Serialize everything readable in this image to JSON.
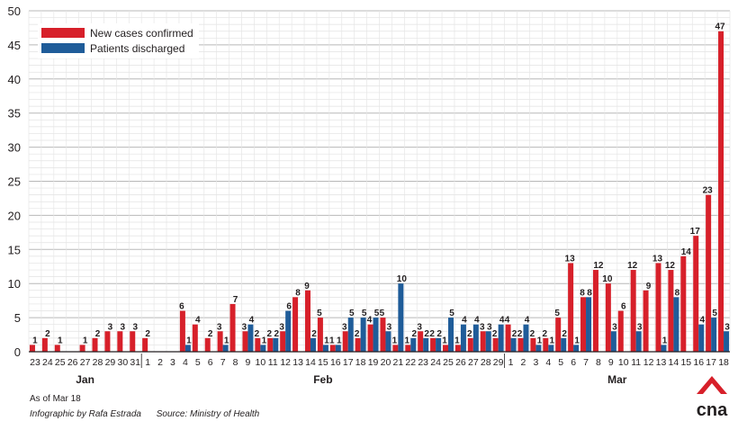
{
  "chart_data": {
    "type": "bar",
    "title": "",
    "xlabel": "",
    "ylabel": "",
    "ylim": [
      0,
      50
    ],
    "yticks": [
      0,
      5,
      10,
      15,
      20,
      25,
      30,
      35,
      40,
      45,
      50
    ],
    "grid": true,
    "legend_position": "top-left",
    "categories": [
      "23",
      "24",
      "25",
      "26",
      "27",
      "28",
      "29",
      "30",
      "31",
      "1",
      "2",
      "3",
      "4",
      "5",
      "6",
      "7",
      "8",
      "9",
      "10",
      "11",
      "12",
      "13",
      "14",
      "15",
      "16",
      "17",
      "18",
      "19",
      "20",
      "21",
      "22",
      "23",
      "24",
      "25",
      "26",
      "27",
      "28",
      "29",
      "1",
      "2",
      "3",
      "4",
      "5",
      "6",
      "7",
      "8",
      "9",
      "10",
      "11",
      "12",
      "13",
      "14",
      "15",
      "16",
      "17",
      "18"
    ],
    "month_labels": [
      {
        "label": "Jan",
        "start_index": 0,
        "end_index": 8
      },
      {
        "label": "Feb",
        "start_index": 9,
        "end_index": 37
      },
      {
        "label": "Mar",
        "start_index": 38,
        "end_index": 55
      }
    ],
    "series": [
      {
        "name": "New cases confirmed",
        "color": "#d7202a",
        "values": [
          1,
          2,
          1,
          0,
          1,
          2,
          3,
          3,
          3,
          2,
          0,
          0,
          6,
          4,
          2,
          3,
          7,
          3,
          2,
          2,
          3,
          8,
          9,
          5,
          1,
          3,
          2,
          4,
          5,
          1,
          1,
          3,
          2,
          1,
          1,
          2,
          3,
          2,
          4,
          2,
          2,
          2,
          5,
          13,
          8,
          12,
          10,
          6,
          12,
          9,
          13,
          12,
          14,
          17,
          23,
          47
        ]
      },
      {
        "name": "Patients discharged",
        "color": "#1f5c99",
        "values": [
          0,
          0,
          0,
          0,
          0,
          0,
          0,
          0,
          0,
          0,
          0,
          0,
          1,
          0,
          0,
          1,
          0,
          4,
          1,
          2,
          6,
          0,
          2,
          1,
          1,
          5,
          5,
          5,
          3,
          10,
          2,
          2,
          2,
          5,
          4,
          4,
          3,
          4,
          2,
          4,
          1,
          1,
          2,
          1,
          8,
          0,
          3,
          0,
          3,
          0,
          1,
          8,
          0,
          4,
          5,
          3
        ]
      }
    ]
  },
  "footer": {
    "note": "As of Mar 18",
    "credit": "Infographic by Rafa Estrada",
    "source": "Source: Ministry of Health"
  },
  "brand": {
    "logo_text": "cna",
    "color": "#d7202a"
  }
}
